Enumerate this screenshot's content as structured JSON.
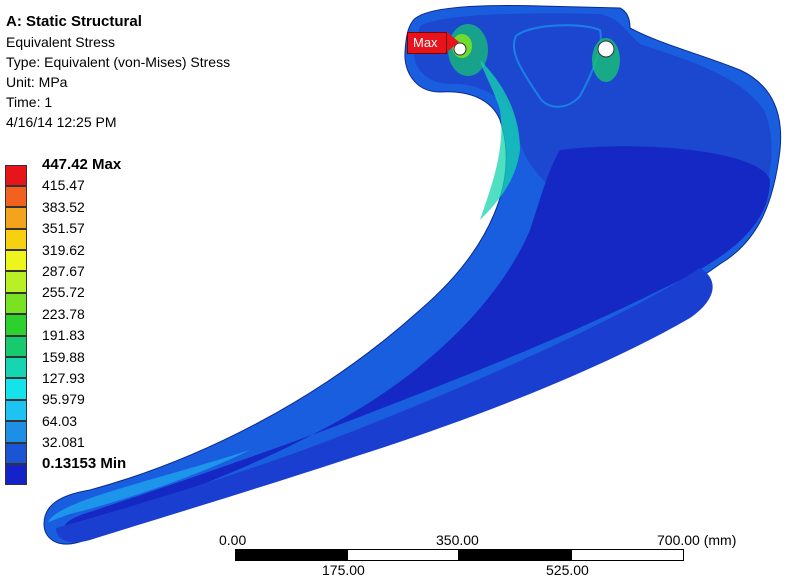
{
  "header": {
    "title": "A: Static Structural",
    "result_name": "Equivalent Stress",
    "type_line": "Type: Equivalent (von-Mises) Stress",
    "unit_line": "Unit: MPa",
    "time_line": "Time: 1",
    "date_line": "4/16/14 12:25 PM"
  },
  "legend": {
    "max_label": "447.42 Max",
    "min_label": "0.13153 Min",
    "values": [
      "415.47",
      "383.52",
      "351.57",
      "319.62",
      "287.67",
      "255.72",
      "223.78",
      "191.83",
      "159.88",
      "127.93",
      "95.979",
      "64.03",
      "32.081"
    ],
    "colors": [
      "#e8141b",
      "#f0621e",
      "#f4a31c",
      "#f7d010",
      "#eef51d",
      "#b9ef25",
      "#79e222",
      "#2ed02e",
      "#17c96f",
      "#14d6b0",
      "#14e3ec",
      "#1fc3f2",
      "#1d8fe6",
      "#1a55d4",
      "#1622c9"
    ]
  },
  "probe": {
    "label": "Max"
  },
  "scale_bar": {
    "top_labels": [
      "0.00",
      "350.00",
      "700.00 (mm)"
    ],
    "bottom_labels": [
      "175.00",
      "525.00"
    ]
  }
}
